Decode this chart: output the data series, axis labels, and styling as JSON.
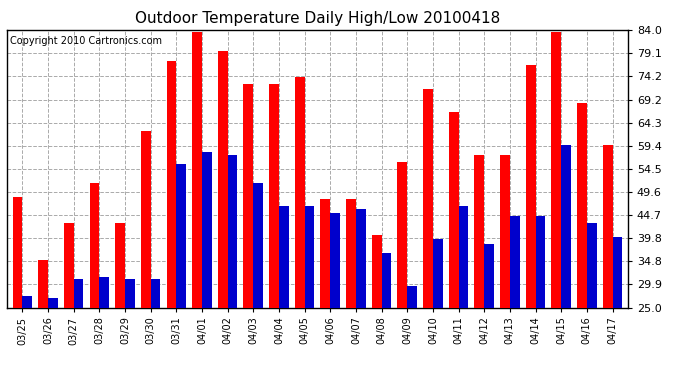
{
  "title": "Outdoor Temperature Daily High/Low 20100418",
  "copyright": "Copyright 2010 Cartronics.com",
  "dates": [
    "03/25",
    "03/26",
    "03/27",
    "03/28",
    "03/29",
    "03/30",
    "03/31",
    "04/01",
    "04/02",
    "04/03",
    "04/04",
    "04/05",
    "04/06",
    "04/07",
    "04/08",
    "04/09",
    "04/10",
    "04/11",
    "04/12",
    "04/13",
    "04/14",
    "04/15",
    "04/16",
    "04/17"
  ],
  "highs": [
    48.5,
    35.0,
    43.0,
    51.5,
    43.0,
    62.5,
    77.5,
    83.5,
    79.5,
    72.5,
    72.5,
    74.0,
    48.0,
    48.0,
    40.5,
    56.0,
    71.5,
    66.5,
    57.5,
    57.5,
    76.5,
    83.5,
    68.5,
    59.5
  ],
  "lows": [
    27.5,
    27.0,
    31.0,
    31.5,
    31.0,
    31.0,
    55.5,
    58.0,
    57.5,
    51.5,
    46.5,
    46.5,
    45.0,
    46.0,
    36.5,
    29.5,
    39.5,
    46.5,
    38.5,
    44.5,
    44.5,
    59.5,
    43.0,
    40.0
  ],
  "high_color": "#ff0000",
  "low_color": "#0000cc",
  "bg_color": "#ffffff",
  "grid_color": "#aaaaaa",
  "ymin": 25.0,
  "ymax": 84.0,
  "yticks": [
    25.0,
    29.9,
    34.8,
    39.8,
    44.7,
    49.6,
    54.5,
    59.4,
    64.3,
    69.2,
    74.2,
    79.1,
    84.0
  ],
  "title_fontsize": 11,
  "copyright_fontsize": 7,
  "tick_fontsize": 8,
  "xtick_fontsize": 7,
  "bar_width": 0.38,
  "figwidth": 6.9,
  "figheight": 3.75,
  "dpi": 100
}
